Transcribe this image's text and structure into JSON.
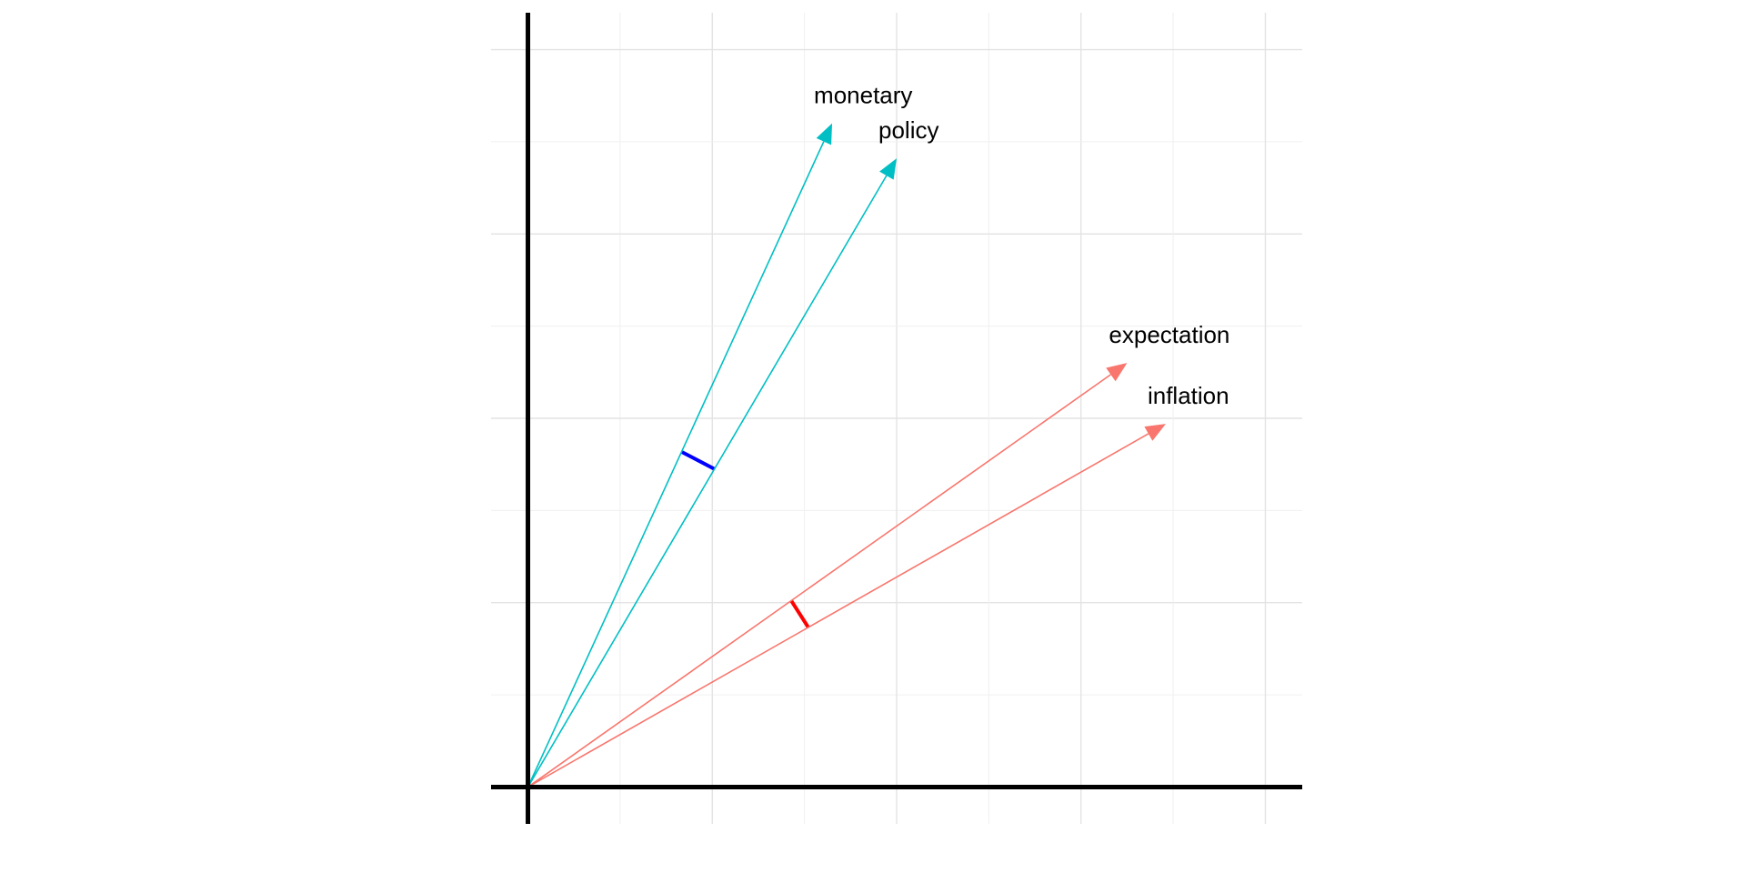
{
  "chart_data": {
    "type": "vector",
    "title": "",
    "xlabel": "",
    "ylabel": "",
    "xlim": [
      -0.2,
      4.2
    ],
    "ylim": [
      -0.2,
      4.2
    ],
    "grid": true,
    "axes": "bold lines through origin",
    "tick_labels": "none",
    "series": [
      {
        "name": "monetary",
        "group": "blue",
        "color": "#00BFC4",
        "x": 1.65,
        "y": 3.6
      },
      {
        "name": "policy",
        "group": "blue",
        "color": "#00BFC4",
        "x": 2.0,
        "y": 3.41
      },
      {
        "name": "expectation",
        "group": "red",
        "color": "#F8766D",
        "x": 3.25,
        "y": 2.3
      },
      {
        "name": "inflation",
        "group": "red",
        "color": "#F8766D",
        "x": 3.46,
        "y": 1.97
      }
    ],
    "angle_markers": [
      {
        "between": [
          "monetary",
          "policy"
        ],
        "color": "#0000FF",
        "radius": 2.0
      },
      {
        "between": [
          "expectation",
          "inflation"
        ],
        "color": "#FF0000",
        "radius": 1.75
      }
    ]
  }
}
